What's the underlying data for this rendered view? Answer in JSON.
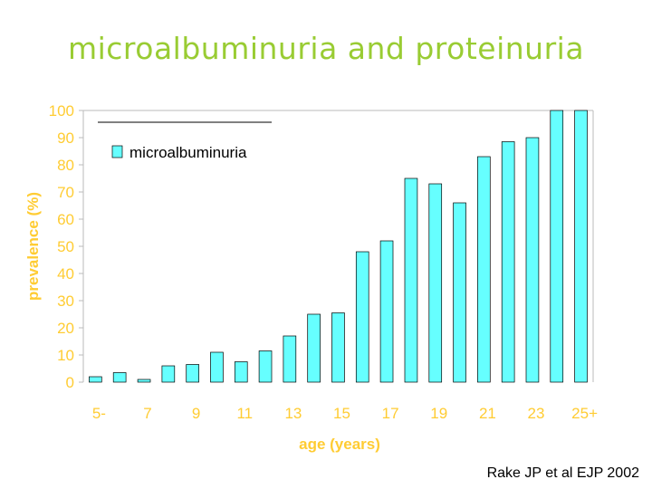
{
  "colors": {
    "title": "#99cc33",
    "axis_text": "#ffcc33",
    "bar_fill": "#66ffff",
    "bar_stroke": "#000000",
    "legend_text": "#000000"
  },
  "source_text": "Rake JP et al EJP 2002",
  "chart_data": {
    "type": "bar",
    "title": "microalbuminuria and proteinuria",
    "xlabel": "age (years)",
    "ylabel": "prevalence (%)",
    "ylim": [
      0,
      100
    ],
    "yticks": [
      0,
      10,
      20,
      30,
      40,
      50,
      60,
      70,
      80,
      90,
      100
    ],
    "x_tick_labels": [
      "5-",
      "7",
      "9",
      "11",
      "13",
      "15",
      "17",
      "19",
      "21",
      "23",
      "25+"
    ],
    "legend_position": "top-left",
    "grid": false,
    "series": [
      {
        "name": "microalbuminuria",
        "values": [
          2,
          3.5,
          1,
          6,
          6.5,
          11,
          7.5,
          11.5,
          17,
          25,
          25.5,
          48,
          52,
          75,
          73,
          66,
          83,
          88.5,
          90,
          100,
          100
        ]
      }
    ]
  }
}
